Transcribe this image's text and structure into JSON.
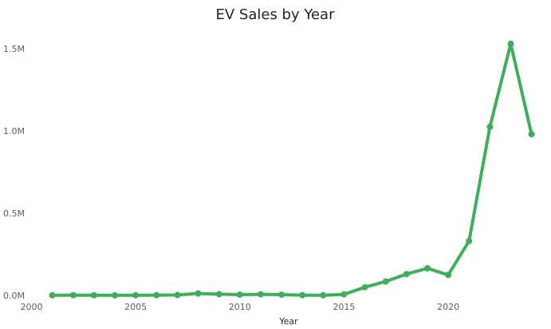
{
  "chart_data": {
    "type": "line",
    "title": "EV Sales by Year",
    "xlabel": "Year",
    "ylabel": "",
    "x_ticks": [
      "2000",
      "2005",
      "2010",
      "2015",
      "2020"
    ],
    "y_ticks": [
      "0.0M",
      "0.5M",
      "1.0M",
      "1.5M"
    ],
    "xlim": [
      2000,
      2024.3
    ],
    "ylim": [
      0,
      1600000
    ],
    "grid": false,
    "series": [
      {
        "color": "#3fae5a",
        "points": [
          {
            "x": 2001,
            "y": 1000
          },
          {
            "x": 2002,
            "y": 2000
          },
          {
            "x": 2003,
            "y": 1500
          },
          {
            "x": 2004,
            "y": 1000
          },
          {
            "x": 2005,
            "y": 1500
          },
          {
            "x": 2006,
            "y": 2000
          },
          {
            "x": 2007,
            "y": 3000
          },
          {
            "x": 2008,
            "y": 12000
          },
          {
            "x": 2009,
            "y": 8000
          },
          {
            "x": 2010,
            "y": 5000
          },
          {
            "x": 2011,
            "y": 7000
          },
          {
            "x": 2012,
            "y": 5000
          },
          {
            "x": 2013,
            "y": 2000
          },
          {
            "x": 2014,
            "y": 1000
          },
          {
            "x": 2015,
            "y": 7000
          },
          {
            "x": 2016,
            "y": 50000
          },
          {
            "x": 2017,
            "y": 85000
          },
          {
            "x": 2018,
            "y": 130000
          },
          {
            "x": 2019,
            "y": 165000
          },
          {
            "x": 2020,
            "y": 125000
          },
          {
            "x": 2021,
            "y": 330000
          },
          {
            "x": 2022,
            "y": 1025000
          },
          {
            "x": 2023,
            "y": 1530000
          },
          {
            "x": 2024,
            "y": 980000
          }
        ]
      }
    ]
  }
}
